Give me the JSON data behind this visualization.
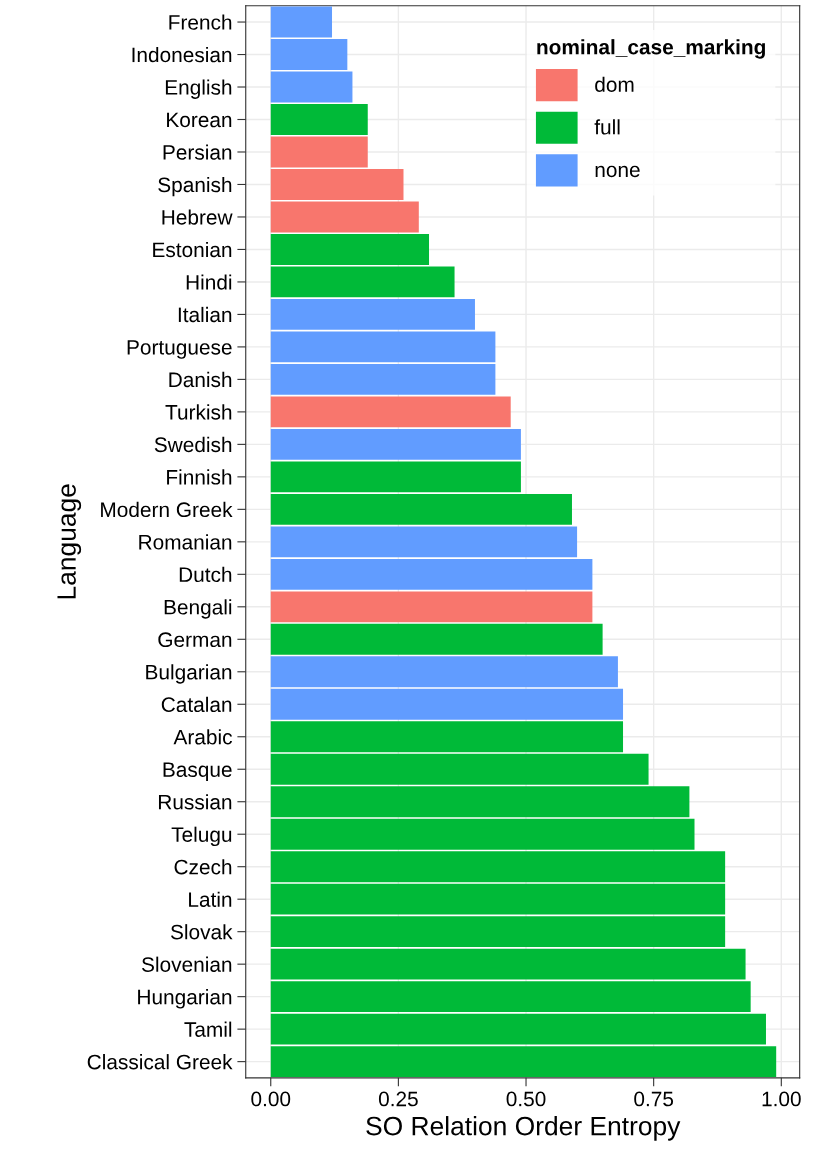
{
  "chart_data": {
    "type": "bar",
    "orientation": "horizontal",
    "xlabel": "SO Relation Order Entropy",
    "ylabel": "Language",
    "legend_title": "nominal_case_marking",
    "legend": "top right",
    "grid": true,
    "categories": [
      "French",
      "Indonesian",
      "English",
      "Korean",
      "Persian",
      "Spanish",
      "Hebrew",
      "Estonian",
      "Hindi",
      "Italian",
      "Portuguese",
      "Danish",
      "Turkish",
      "Swedish",
      "Finnish",
      "Modern Greek",
      "Romanian",
      "Dutch",
      "Bengali",
      "German",
      "Bulgarian",
      "Catalan",
      "Arabic",
      "Basque",
      "Russian",
      "Telugu",
      "Czech",
      "Latin",
      "Slovak",
      "Slovenian",
      "Hungarian",
      "Tamil",
      "Classical Greek"
    ],
    "xlim": [
      -0.049,
      1.036
    ],
    "xticks": [
      {
        "value": 0,
        "label": "0.00"
      },
      {
        "value": 0.25,
        "label": "0.25"
      },
      {
        "value": 0.5,
        "label": "0.50"
      },
      {
        "value": 0.75,
        "label": "0.75"
      },
      {
        "value": 1,
        "label": "1.00"
      }
    ],
    "series": [
      {
        "name": "dom",
        "color": "#f8766d",
        "values": [
          null,
          null,
          null,
          null,
          0.19,
          0.26,
          0.29,
          null,
          null,
          null,
          null,
          null,
          0.47,
          null,
          null,
          null,
          null,
          null,
          0.63,
          null,
          null,
          null,
          null,
          null,
          null,
          null,
          null,
          null,
          null,
          null,
          null,
          null,
          null
        ]
      },
      {
        "name": "full",
        "color": "#00ba38",
        "values": [
          null,
          null,
          null,
          0.19,
          null,
          null,
          null,
          0.31,
          0.36,
          null,
          null,
          null,
          null,
          null,
          0.49,
          0.59,
          null,
          null,
          null,
          0.65,
          null,
          null,
          0.69,
          0.74,
          0.82,
          0.83,
          0.89,
          0.89,
          0.89,
          0.93,
          0.94,
          0.97,
          0.99
        ]
      },
      {
        "name": "none",
        "color": "#619cff",
        "values": [
          0.12,
          0.15,
          0.16,
          null,
          null,
          null,
          null,
          null,
          null,
          0.4,
          0.44,
          0.44,
          null,
          0.49,
          null,
          null,
          0.6,
          0.63,
          null,
          null,
          0.68,
          0.69,
          null,
          null,
          null,
          null,
          null,
          null,
          null,
          null,
          null,
          null,
          null
        ]
      }
    ]
  }
}
